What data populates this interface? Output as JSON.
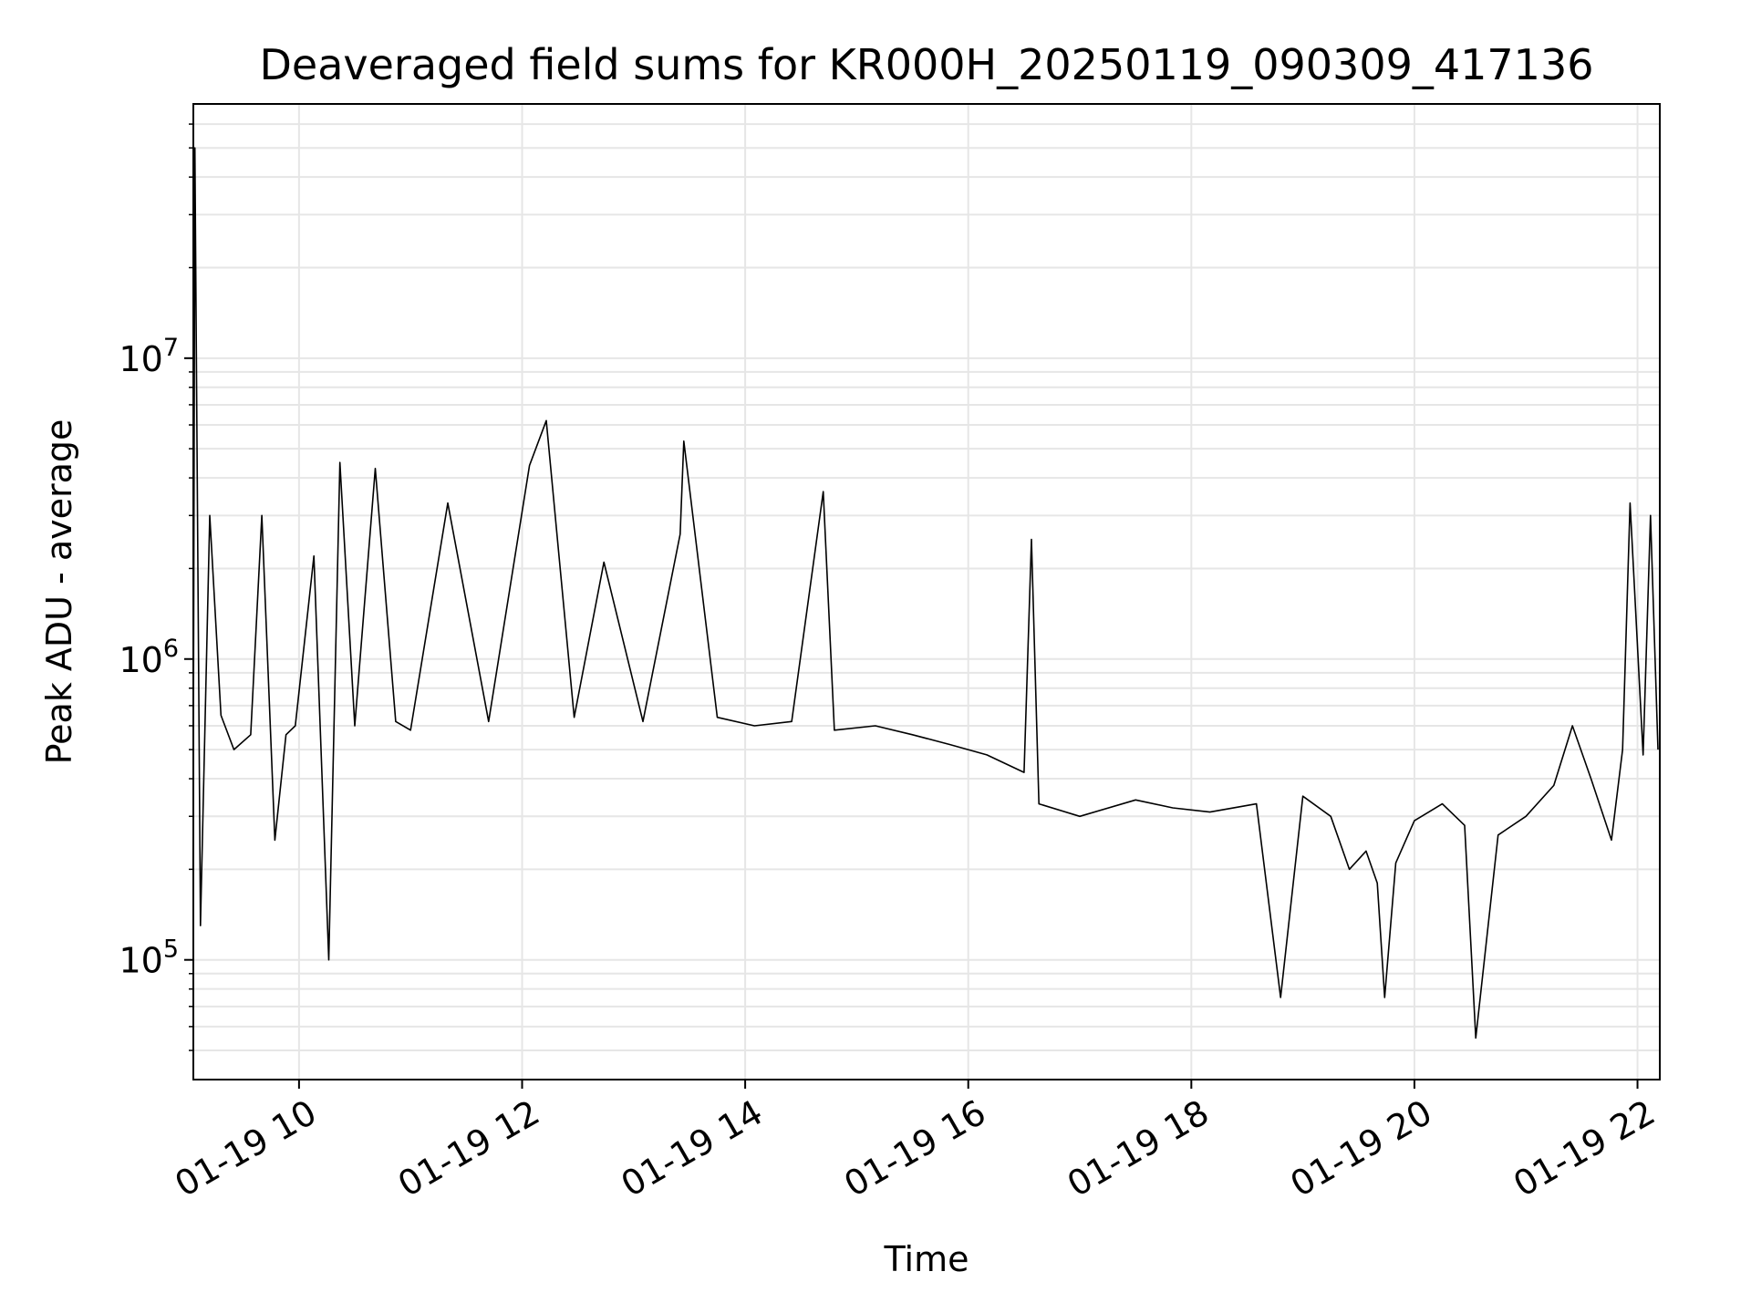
{
  "chart_data": {
    "type": "line",
    "title": "Deaveraged field sums for KR000H_20250119_090309_417136",
    "xlabel": "Time",
    "ylabel": "Peak ADU - average",
    "yscale": "log",
    "xlim": [
      "2025-01-19 09:03:09",
      "2025-01-19 22:12:00"
    ],
    "ylim": [
      40000,
      70000000
    ],
    "grid": true,
    "x_ticks": [
      "01-19 10",
      "01-19 12",
      "01-19 14",
      "01-19 16",
      "01-19 18",
      "01-19 20",
      "01-19 22"
    ],
    "y_ticks": [
      {
        "base": "10",
        "exp": "5",
        "value": 100000
      },
      {
        "base": "10",
        "exp": "6",
        "value": 1000000
      },
      {
        "base": "10",
        "exp": "7",
        "value": 10000000
      }
    ],
    "series": [
      {
        "color": "#000000",
        "x": [
          "2025-01-19 09:03",
          "2025-01-19 09:04",
          "2025-01-19 09:07",
          "2025-01-19 09:12",
          "2025-01-19 09:18",
          "2025-01-19 09:25",
          "2025-01-19 09:34",
          "2025-01-19 09:40",
          "2025-01-19 09:47",
          "2025-01-19 09:53",
          "2025-01-19 09:58",
          "2025-01-19 10:08",
          "2025-01-19 10:16",
          "2025-01-19 10:22",
          "2025-01-19 10:30",
          "2025-01-19 10:41",
          "2025-01-19 10:52",
          "2025-01-19 11:00",
          "2025-01-19 11:20",
          "2025-01-19 11:42",
          "2025-01-19 12:04",
          "2025-01-19 12:13",
          "2025-01-19 12:28",
          "2025-01-19 12:44",
          "2025-01-19 13:05",
          "2025-01-19 13:25",
          "2025-01-19 13:27",
          "2025-01-19 13:45",
          "2025-01-19 14:05",
          "2025-01-19 14:25",
          "2025-01-19 14:42",
          "2025-01-19 14:48",
          "2025-01-19 15:10",
          "2025-01-19 15:30",
          "2025-01-19 15:50",
          "2025-01-19 16:10",
          "2025-01-19 16:30",
          "2025-01-19 16:34",
          "2025-01-19 16:38",
          "2025-01-19 17:00",
          "2025-01-19 17:30",
          "2025-01-19 17:50",
          "2025-01-19 18:10",
          "2025-01-19 18:35",
          "2025-01-19 18:48",
          "2025-01-19 19:00",
          "2025-01-19 19:15",
          "2025-01-19 19:25",
          "2025-01-19 19:34",
          "2025-01-19 19:40",
          "2025-01-19 19:44",
          "2025-01-19 19:50",
          "2025-01-19 20:00",
          "2025-01-19 20:15",
          "2025-01-19 20:27",
          "2025-01-19 20:33",
          "2025-01-19 20:45",
          "2025-01-19 21:00",
          "2025-01-19 21:15",
          "2025-01-19 21:25",
          "2025-01-19 21:35",
          "2025-01-19 21:46",
          "2025-01-19 21:52",
          "2025-01-19 21:56",
          "2025-01-19 22:03",
          "2025-01-19 22:07",
          "2025-01-19 22:11"
        ],
        "y": [
          200000,
          50000000,
          130000,
          3000000,
          650000,
          500000,
          560000,
          3000000,
          250000,
          560000,
          600000,
          2200000,
          100000,
          4500000,
          600000,
          4300000,
          620000,
          580000,
          3300000,
          620000,
          4400000,
          6200000,
          640000,
          2100000,
          620000,
          2600000,
          5300000,
          640000,
          600000,
          620000,
          3600000,
          580000,
          600000,
          560000,
          520000,
          480000,
          420000,
          2500000,
          330000,
          300000,
          340000,
          320000,
          310000,
          330000,
          75000,
          350000,
          300000,
          200000,
          230000,
          180000,
          75000,
          210000,
          290000,
          330000,
          280000,
          55000,
          260000,
          300000,
          380000,
          600000,
          400000,
          250000,
          500000,
          3300000,
          480000,
          3000000,
          500000
        ]
      }
    ]
  }
}
